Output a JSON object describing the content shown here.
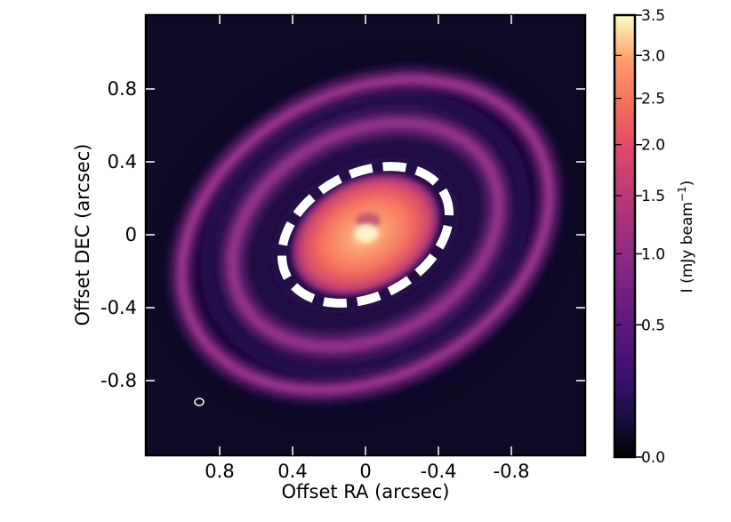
{
  "figure": {
    "xlabel": "Offset RA (arcsec)",
    "ylabel": "Offset DEC (arcsec)",
    "colorbar_label_main": "I (mJy beam",
    "colorbar_label_sup": "−1",
    "colorbar_label_close": ")",
    "x_ticks": [
      {
        "value": 0.8,
        "label": "0.8"
      },
      {
        "value": 0.4,
        "label": "0.4"
      },
      {
        "value": 0.0,
        "label": "0"
      },
      {
        "value": -0.4,
        "label": "-0.4"
      },
      {
        "value": -0.8,
        "label": "-0.8"
      }
    ],
    "y_ticks": [
      {
        "value": 0.8,
        "label": "0.8"
      },
      {
        "value": 0.4,
        "label": "0.4"
      },
      {
        "value": 0.0,
        "label": "0"
      },
      {
        "value": -0.4,
        "label": "-0.4"
      },
      {
        "value": -0.8,
        "label": "-0.8"
      }
    ],
    "colorbar_ticks": [
      {
        "value": 3.5,
        "label": "3.5"
      },
      {
        "value": 3.0,
        "label": "3.0"
      },
      {
        "value": 2.5,
        "label": "2.5"
      },
      {
        "value": 2.0,
        "label": "2.0"
      },
      {
        "value": 1.5,
        "label": "1.5"
      },
      {
        "value": 1.0,
        "label": "1.0"
      },
      {
        "value": 0.5,
        "label": "0.5"
      },
      {
        "value": 0.0,
        "label": "0.0"
      }
    ],
    "colormap": [
      "#000004",
      "#1d1147",
      "#51127c",
      "#822681",
      "#b73779",
      "#e75263",
      "#fc8961",
      "#fec488",
      "#fcfdbf"
    ],
    "ring_color": "#ffffff"
  }
}
